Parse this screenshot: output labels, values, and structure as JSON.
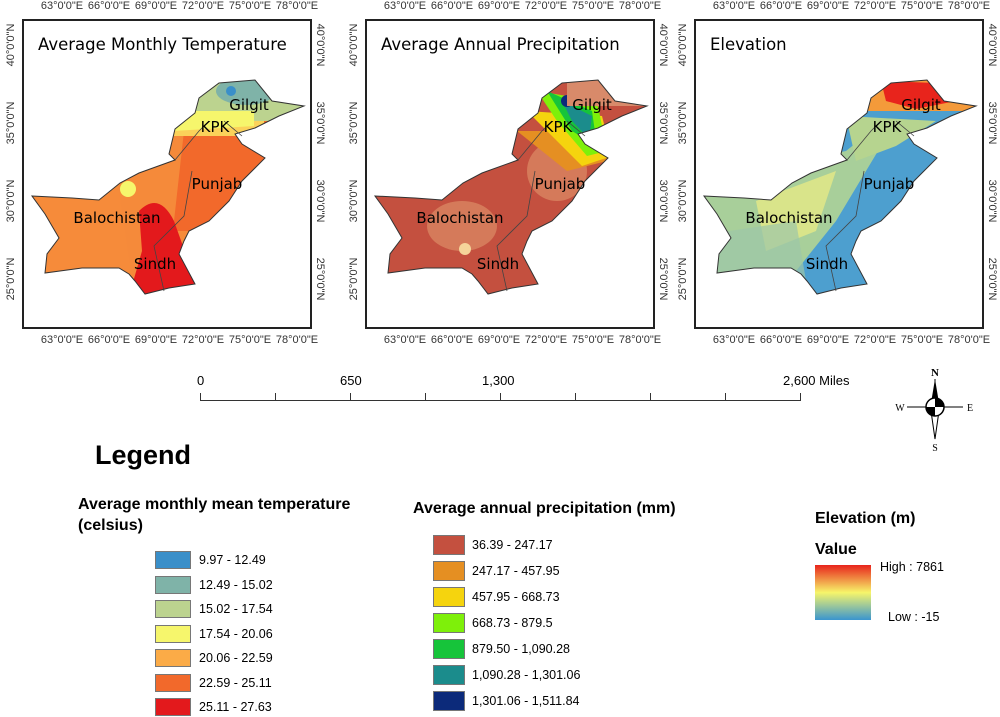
{
  "lon_ticks": [
    "63°0'0\"E",
    "66°0'0\"E",
    "69°0'0\"E",
    "72°0'0\"E",
    "75°0'0\"E",
    "78°0'0\"E"
  ],
  "lat_ticks": [
    "40°0'0\"N",
    "35°0'0\"N",
    "30°0'0\"N",
    "25°0'0\"N"
  ],
  "provinces": {
    "gilgit": "Gilgit",
    "kpk": "KPK",
    "punjab": "Punjab",
    "balochistan": "Balochistan",
    "sindh": "Sindh"
  },
  "maps": [
    {
      "title": "Average Monthly Temperature"
    },
    {
      "title": "Average Annual Precipitation"
    },
    {
      "title": "Elevation"
    }
  ],
  "scale_bar": {
    "labels": [
      "0",
      "650",
      "1,300",
      "2,600 Miles"
    ]
  },
  "compass": {
    "n": "N",
    "s": "S",
    "e": "E",
    "w": "W"
  },
  "legend": {
    "title": "Legend",
    "temperature": {
      "title": "Average monthly mean temperature (celsius)",
      "items": [
        {
          "label": "9.97 - 12.49",
          "color": "#3a8fc9"
        },
        {
          "label": "12.49 - 15.02",
          "color": "#7fb3a8"
        },
        {
          "label": "15.02 - 17.54",
          "color": "#bcd38f"
        },
        {
          "label": "17.54 - 20.06",
          "color": "#f6f66c"
        },
        {
          "label": "20.06 - 22.59",
          "color": "#fbab47"
        },
        {
          "label": "22.59 - 25.11",
          "color": "#f2692b"
        },
        {
          "label": "25.11 - 27.63",
          "color": "#e3191c"
        }
      ]
    },
    "precipitation": {
      "title": "Average annual precipitation (mm)",
      "items": [
        {
          "label": "36.39 - 247.17",
          "color": "#c4503f"
        },
        {
          "label": "247.17 - 457.95",
          "color": "#e58f22"
        },
        {
          "label": "457.95 - 668.73",
          "color": "#f5d40e"
        },
        {
          "label": "668.73 - 879.5",
          "color": "#7ef00a"
        },
        {
          "label": "879.50 - 1,090.28",
          "color": "#16c43a"
        },
        {
          "label": "1,090.28 - 1,301.06",
          "color": "#1b8c8c"
        },
        {
          "label": "1,301.06 - 1,511.84",
          "color": "#0c2a7a"
        }
      ]
    },
    "elevation": {
      "title": "Elevation (m)",
      "subtitle": "Value",
      "high": "High : 7861",
      "low": "Low : -15",
      "colors": [
        "#e8241c",
        "#f7f56a",
        "#3a95cf"
      ]
    }
  }
}
